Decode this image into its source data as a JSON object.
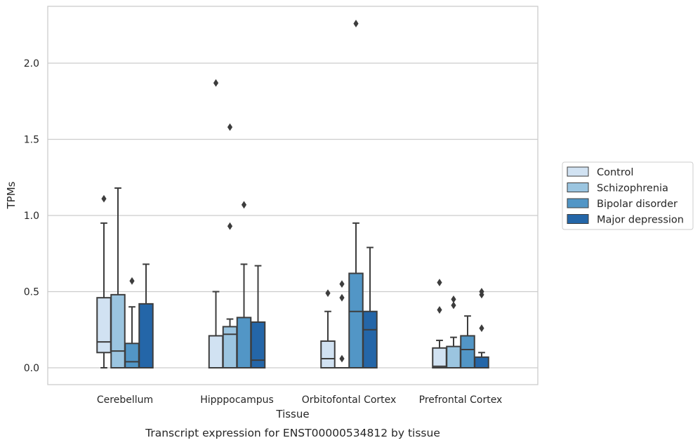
{
  "chart_data": {
    "type": "box",
    "title": "",
    "caption": "Transcript expression for ENST00000534812 by tissue",
    "xlabel": "Tissue",
    "ylabel": "TPMs",
    "ylim": [
      -0.11,
      2.38
    ],
    "yticks": [
      0.0,
      0.5,
      1.0,
      1.5,
      2.0
    ],
    "ytick_labels": [
      "0.0",
      "0.5",
      "1.0",
      "1.5",
      "2.0"
    ],
    "grid": "horizontal",
    "legend_position": "right",
    "categories": [
      "Cerebellum",
      "Hipppocampus",
      "Orbitofontal Cortex",
      "Prefrontal Cortex"
    ],
    "series": [
      {
        "name": "Control",
        "color": "#d1e2f2",
        "boxes": [
          {
            "q1": 0.1,
            "median": 0.17,
            "q3": 0.46,
            "whisker_low": 0.0,
            "whisker_high": 0.95,
            "outliers": [
              1.11
            ]
          },
          {
            "q1": 0.0,
            "median": 0.0,
            "q3": 0.21,
            "whisker_low": 0.0,
            "whisker_high": 0.5,
            "outliers": [
              1.87
            ]
          },
          {
            "q1": 0.0,
            "median": 0.06,
            "q3": 0.175,
            "whisker_low": 0.0,
            "whisker_high": 0.37,
            "outliers": [
              0.49
            ]
          },
          {
            "q1": 0.0,
            "median": 0.01,
            "q3": 0.13,
            "whisker_low": 0.0,
            "whisker_high": 0.18,
            "outliers": [
              0.38,
              0.56
            ]
          }
        ]
      },
      {
        "name": "Schizophrenia",
        "color": "#9bc5e0",
        "boxes": [
          {
            "q1": 0.0,
            "median": 0.11,
            "q3": 0.48,
            "whisker_low": 0.0,
            "whisker_high": 1.18,
            "outliers": []
          },
          {
            "q1": 0.0,
            "median": 0.22,
            "q3": 0.27,
            "whisker_low": 0.0,
            "whisker_high": 0.32,
            "outliers": [
              0.93,
              1.58
            ]
          },
          {
            "q1": 0.0,
            "median": 0.0,
            "q3": 0.0,
            "whisker_low": 0.0,
            "whisker_high": 0.0,
            "outliers": [
              0.06,
              0.46,
              0.55
            ]
          },
          {
            "q1": 0.0,
            "median": 0.0,
            "q3": 0.14,
            "whisker_low": 0.0,
            "whisker_high": 0.2,
            "outliers": [
              0.41,
              0.45
            ]
          }
        ]
      },
      {
        "name": "Bipolar disorder",
        "color": "#5296c6",
        "boxes": [
          {
            "q1": 0.0,
            "median": 0.04,
            "q3": 0.16,
            "whisker_low": 0.0,
            "whisker_high": 0.4,
            "outliers": [
              0.57
            ]
          },
          {
            "q1": 0.0,
            "median": 0.0,
            "q3": 0.33,
            "whisker_low": 0.0,
            "whisker_high": 0.68,
            "outliers": [
              1.07
            ]
          },
          {
            "q1": 0.0,
            "median": 0.37,
            "q3": 0.62,
            "whisker_low": 0.0,
            "whisker_high": 0.95,
            "outliers": [
              2.26
            ]
          },
          {
            "q1": 0.0,
            "median": 0.12,
            "q3": 0.21,
            "whisker_low": 0.0,
            "whisker_high": 0.34,
            "outliers": []
          }
        ]
      },
      {
        "name": "Major depression",
        "color": "#2466a8",
        "boxes": [
          {
            "q1": 0.0,
            "median": 0.0,
            "q3": 0.42,
            "whisker_low": 0.0,
            "whisker_high": 0.68,
            "outliers": []
          },
          {
            "q1": 0.0,
            "median": 0.05,
            "q3": 0.3,
            "whisker_low": 0.0,
            "whisker_high": 0.67,
            "outliers": []
          },
          {
            "q1": 0.0,
            "median": 0.25,
            "q3": 0.37,
            "whisker_low": 0.0,
            "whisker_high": 0.79,
            "outliers": []
          },
          {
            "q1": 0.0,
            "median": 0.0,
            "q3": 0.07,
            "whisker_low": 0.0,
            "whisker_high": 0.1,
            "outliers": [
              0.26,
              0.48,
              0.5
            ]
          }
        ]
      }
    ]
  }
}
